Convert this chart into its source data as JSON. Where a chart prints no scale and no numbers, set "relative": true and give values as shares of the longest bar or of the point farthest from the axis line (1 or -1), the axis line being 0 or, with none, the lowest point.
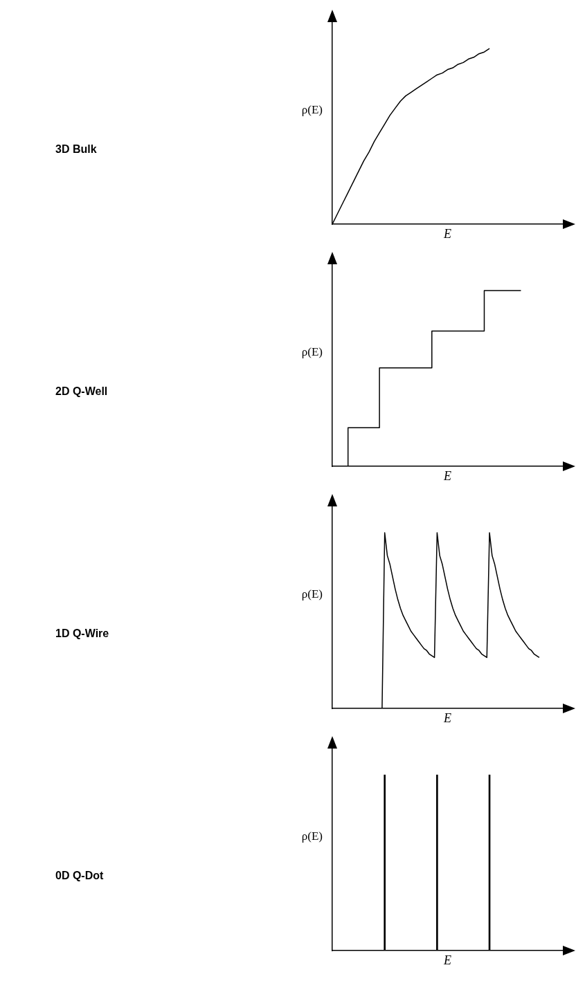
{
  "chart_data": [
    {
      "type": "line",
      "annotations": [
        "3D Bulk"
      ],
      "xlabel": "E",
      "ylabel": "ρ(E)",
      "relative": true,
      "categories": [
        null,
        null,
        null,
        null,
        null,
        null,
        null,
        null,
        null,
        null,
        null,
        null,
        null,
        null,
        null,
        null,
        null,
        null,
        null,
        null,
        null,
        null,
        null,
        null,
        null,
        null,
        null,
        null,
        null,
        null,
        null,
        null,
        null,
        null,
        null,
        null,
        null,
        null,
        null,
        null,
        null,
        null,
        null,
        null,
        null
      ],
      "series": [
        {
          "color": "#000000",
          "values": [
            0,
            0.06,
            0.12,
            0.18,
            0.24,
            0.3,
            0.36,
            0.41,
            0.47,
            0.52,
            0.57,
            0.62,
            0.66,
            0.7,
            0.73,
            0.75,
            0.77,
            0.79,
            0.81,
            0.83,
            0.85,
            0.86,
            0.88,
            0.89,
            0.91,
            0.92,
            0.94,
            0.95,
            0.97,
            0.98,
            1,
            null,
            null,
            null,
            null,
            null,
            null,
            null,
            null,
            null,
            null,
            null,
            null,
            null,
            null
          ]
        }
      ]
    },
    {
      "type": "step",
      "annotations": [
        "2D Q-Well"
      ],
      "xlabel": "E",
      "ylabel": "ρ(E)",
      "relative": true,
      "categories": [
        null,
        null,
        null,
        null,
        null,
        null,
        null,
        null,
        null,
        null,
        null,
        null,
        null,
        null,
        null,
        null,
        null,
        null,
        null,
        null,
        null,
        null,
        null,
        null,
        null,
        null,
        null,
        null,
        null,
        null,
        null,
        null,
        null,
        null,
        null,
        null,
        null,
        null,
        null,
        null,
        null,
        null,
        null,
        null,
        null
      ],
      "series": [
        {
          "color": "#000000",
          "values": [
            0,
            0,
            0,
            0,
            0.22,
            0.22,
            0.22,
            0.22,
            0.22,
            0.22,
            0.56,
            0.56,
            0.56,
            0.56,
            0.56,
            0.56,
            0.56,
            0.56,
            0.56,
            0.56,
            0.77,
            0.77,
            0.77,
            0.77,
            0.77,
            0.77,
            0.77,
            0.77,
            0.77,
            0.77,
            1,
            1,
            1,
            1,
            1,
            1,
            1,
            null,
            null,
            null,
            null,
            null,
            null,
            null,
            null
          ]
        }
      ]
    },
    {
      "type": "line",
      "annotations": [
        "1D Q-Wire"
      ],
      "xlabel": "E",
      "ylabel": "ρ(E)",
      "relative": true,
      "categories": [
        null,
        null,
        null,
        null,
        null,
        null,
        null,
        null,
        null,
        null,
        null,
        null,
        null,
        null,
        null,
        null,
        null,
        null,
        null,
        null,
        null,
        null,
        null,
        null,
        null,
        null,
        null,
        null,
        null,
        null,
        null,
        null,
        null,
        null,
        null,
        null,
        null,
        null,
        null,
        null,
        null,
        null,
        null,
        null,
        null,
        null,
        null,
        null,
        null,
        null,
        null,
        null,
        null,
        null,
        null,
        null,
        null,
        null,
        null,
        null,
        null,
        null,
        null,
        null,
        null,
        null,
        null,
        null,
        null,
        null,
        null,
        null,
        null,
        null,
        null,
        null,
        null,
        null,
        null,
        null,
        null,
        null,
        null,
        null,
        null,
        null,
        null,
        null,
        null
      ],
      "series": [
        {
          "color": "#000000",
          "values": [
            null,
            null,
            null,
            null,
            null,
            null,
            null,
            null,
            null,
            null,
            null,
            null,
            null,
            null,
            null,
            null,
            null,
            null,
            null,
            0,
            1,
            0.87,
            0.82,
            0.75,
            0.68,
            0.62,
            0.57,
            0.53,
            0.5,
            0.47,
            0.44,
            0.42,
            0.4,
            0.38,
            0.36,
            0.34,
            0.33,
            0.31,
            0.3,
            0.29,
            1,
            0.87,
            0.82,
            0.75,
            0.68,
            0.62,
            0.57,
            0.53,
            0.5,
            0.47,
            0.44,
            0.42,
            0.4,
            0.38,
            0.36,
            0.34,
            0.33,
            0.31,
            0.3,
            0.29,
            1,
            0.87,
            0.82,
            0.75,
            0.68,
            0.62,
            0.57,
            0.53,
            0.5,
            0.47,
            0.44,
            0.42,
            0.4,
            0.38,
            0.36,
            0.34,
            0.33,
            0.31,
            0.3,
            0.29,
            null,
            null,
            null,
            null,
            null,
            null,
            null,
            null,
            null
          ]
        }
      ]
    },
    {
      "type": "bar",
      "annotations": [
        "0D Q-Dot"
      ],
      "xlabel": "E",
      "ylabel": "ρ(E)",
      "relative": true,
      "categories": [
        null,
        null,
        null,
        null,
        null,
        null,
        null,
        null,
        null,
        null,
        null,
        null,
        null,
        null,
        null,
        null,
        null,
        null,
        null,
        null,
        null,
        null,
        null,
        null,
        null,
        null,
        null,
        null,
        null,
        null,
        null,
        null,
        null,
        null,
        null,
        null,
        null,
        null,
        null,
        null,
        null,
        null,
        null,
        null,
        null
      ],
      "series": [
        {
          "color": "#000000",
          "values": [
            null,
            null,
            null,
            null,
            null,
            null,
            null,
            null,
            null,
            null,
            1,
            null,
            null,
            null,
            null,
            null,
            null,
            null,
            null,
            null,
            1,
            null,
            null,
            null,
            null,
            null,
            null,
            null,
            null,
            null,
            1,
            null,
            null,
            null,
            null,
            null,
            null,
            null,
            null,
            null,
            null,
            null,
            null,
            null,
            null
          ]
        }
      ]
    }
  ]
}
